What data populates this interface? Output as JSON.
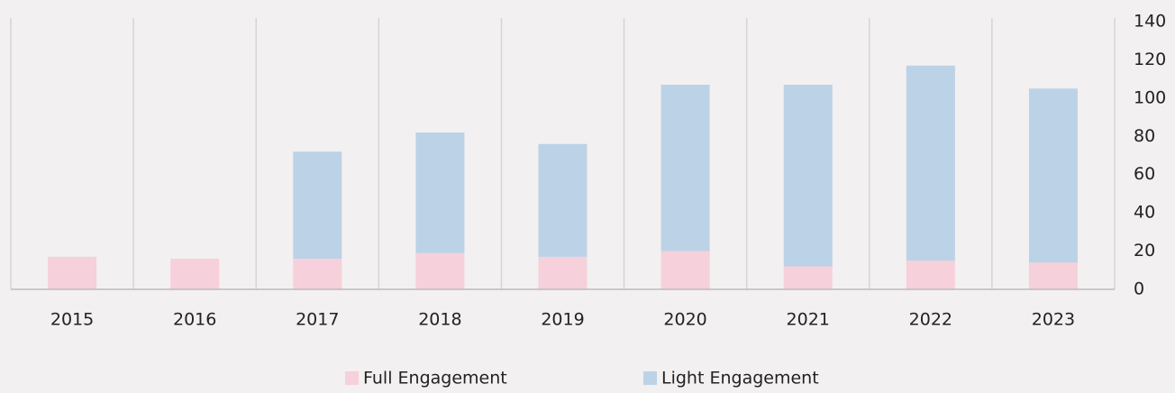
{
  "chart_data": {
    "type": "stacked_bar",
    "categories": [
      "2015",
      "2016",
      "2017",
      "2018",
      "2019",
      "2020",
      "2021",
      "2022",
      "2023"
    ],
    "series": [
      {
        "name": "Full Engagement",
        "color": "#f6d0da",
        "values": [
          17,
          16,
          16,
          19,
          17,
          20,
          12,
          15,
          14
        ]
      },
      {
        "name": "Light Engagement",
        "color": "#bcd2e7",
        "values": [
          0,
          0,
          56,
          63,
          59,
          87,
          95,
          102,
          91
        ]
      }
    ],
    "ylim": [
      0,
      140
    ],
    "yticks": [
      0,
      20,
      40,
      60,
      80,
      100,
      120,
      140
    ],
    "axis_side": "right",
    "grid": false,
    "legend": "bottom"
  }
}
